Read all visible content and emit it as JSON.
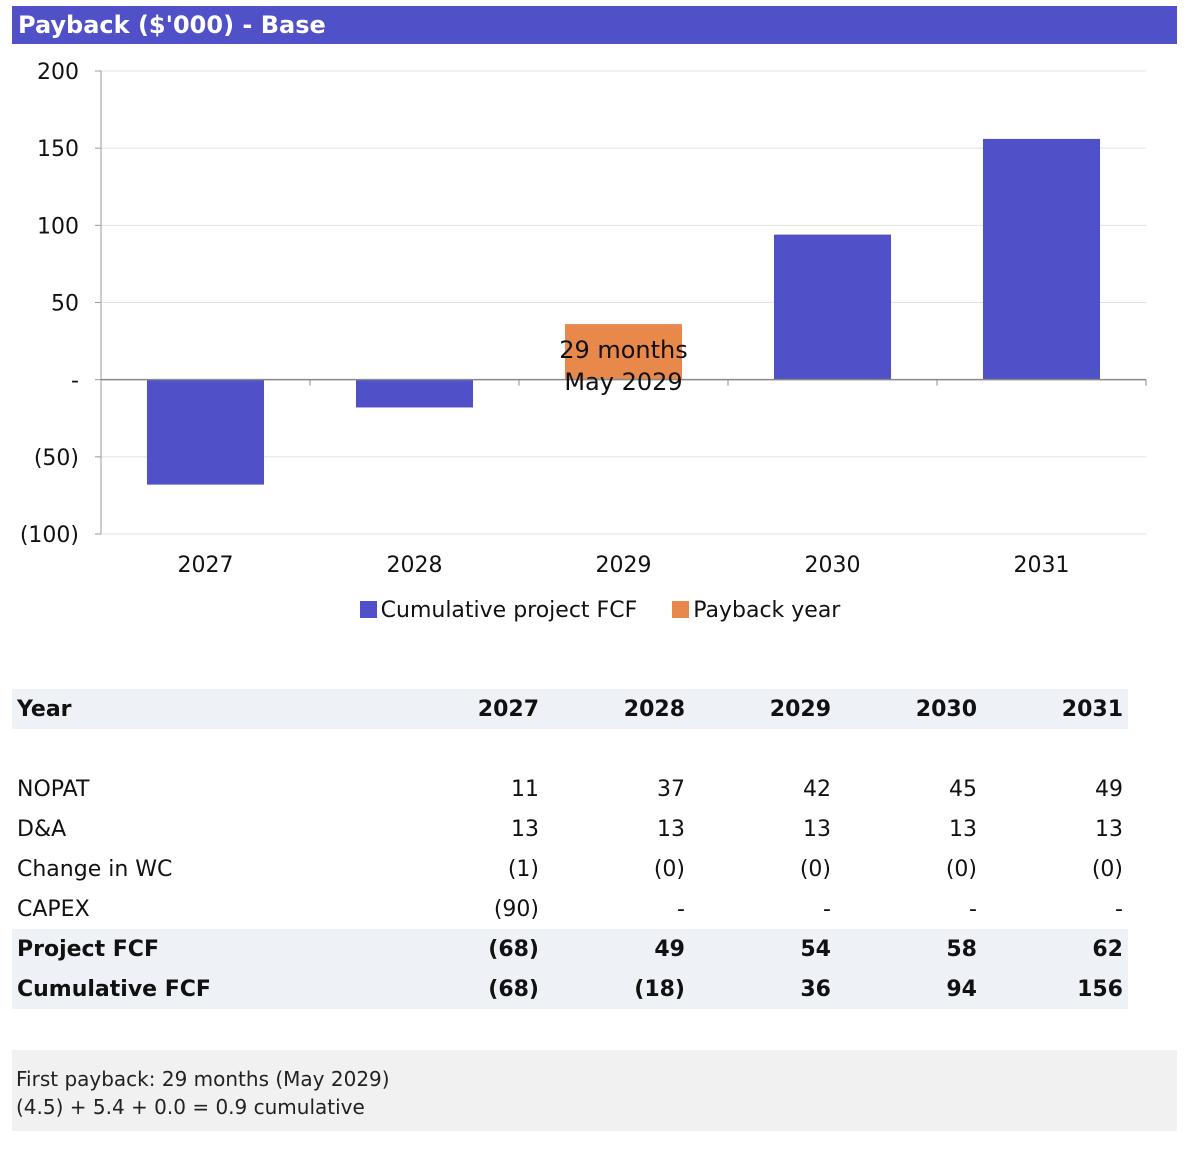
{
  "header": {
    "title": "Payback ($'000) - Base"
  },
  "chart_data": {
    "type": "bar",
    "categories": [
      "2027",
      "2028",
      "2029",
      "2030",
      "2031"
    ],
    "series": [
      {
        "name": "Cumulative project FCF",
        "values": [
          -68,
          -18,
          null,
          94,
          156
        ],
        "color": "#5050c8"
      },
      {
        "name": "Payback year",
        "values": [
          null,
          null,
          36,
          null,
          null
        ],
        "color": "#e8884a"
      }
    ],
    "y_ticks": [
      {
        "value": 200,
        "label": "200"
      },
      {
        "value": 150,
        "label": "150"
      },
      {
        "value": 100,
        "label": "100"
      },
      {
        "value": 50,
        "label": "50"
      },
      {
        "value": 0,
        "label": "-"
      },
      {
        "value": -50,
        "label": "(50)"
      },
      {
        "value": -100,
        "label": "(100)"
      }
    ],
    "ylim": [
      -100,
      200
    ],
    "annotation": {
      "category": "2029",
      "lines": [
        "29 months",
        "May 2029"
      ]
    },
    "grid": true,
    "legend_position": "bottom"
  },
  "table": {
    "header": [
      "Year",
      "2027",
      "2028",
      "2029",
      "2030",
      "2031"
    ],
    "rows": [
      {
        "label": "NOPAT",
        "values": [
          "11",
          "37",
          "42",
          "45",
          "49"
        ],
        "bold": false
      },
      {
        "label": "D&A",
        "values": [
          "13",
          "13",
          "13",
          "13",
          "13"
        ],
        "bold": false
      },
      {
        "label": "Change in WC",
        "values": [
          "(1)",
          "(0)",
          "(0)",
          "(0)",
          "(0)"
        ],
        "bold": false
      },
      {
        "label": "CAPEX",
        "values": [
          "(90)",
          "-",
          "-",
          "-",
          "-"
        ],
        "bold": false
      },
      {
        "label": "Project FCF",
        "values": [
          "(68)",
          "49",
          "54",
          "58",
          "62"
        ],
        "bold": true
      },
      {
        "label": "Cumulative FCF",
        "values": [
          "(68)",
          "(18)",
          "36",
          "94",
          "156"
        ],
        "bold": true
      }
    ]
  },
  "notes": {
    "line1": "First payback: 29 months (May 2029)",
    "line2": "(4.5) + 5.4 + 0.0 = 0.9 cumulative"
  }
}
